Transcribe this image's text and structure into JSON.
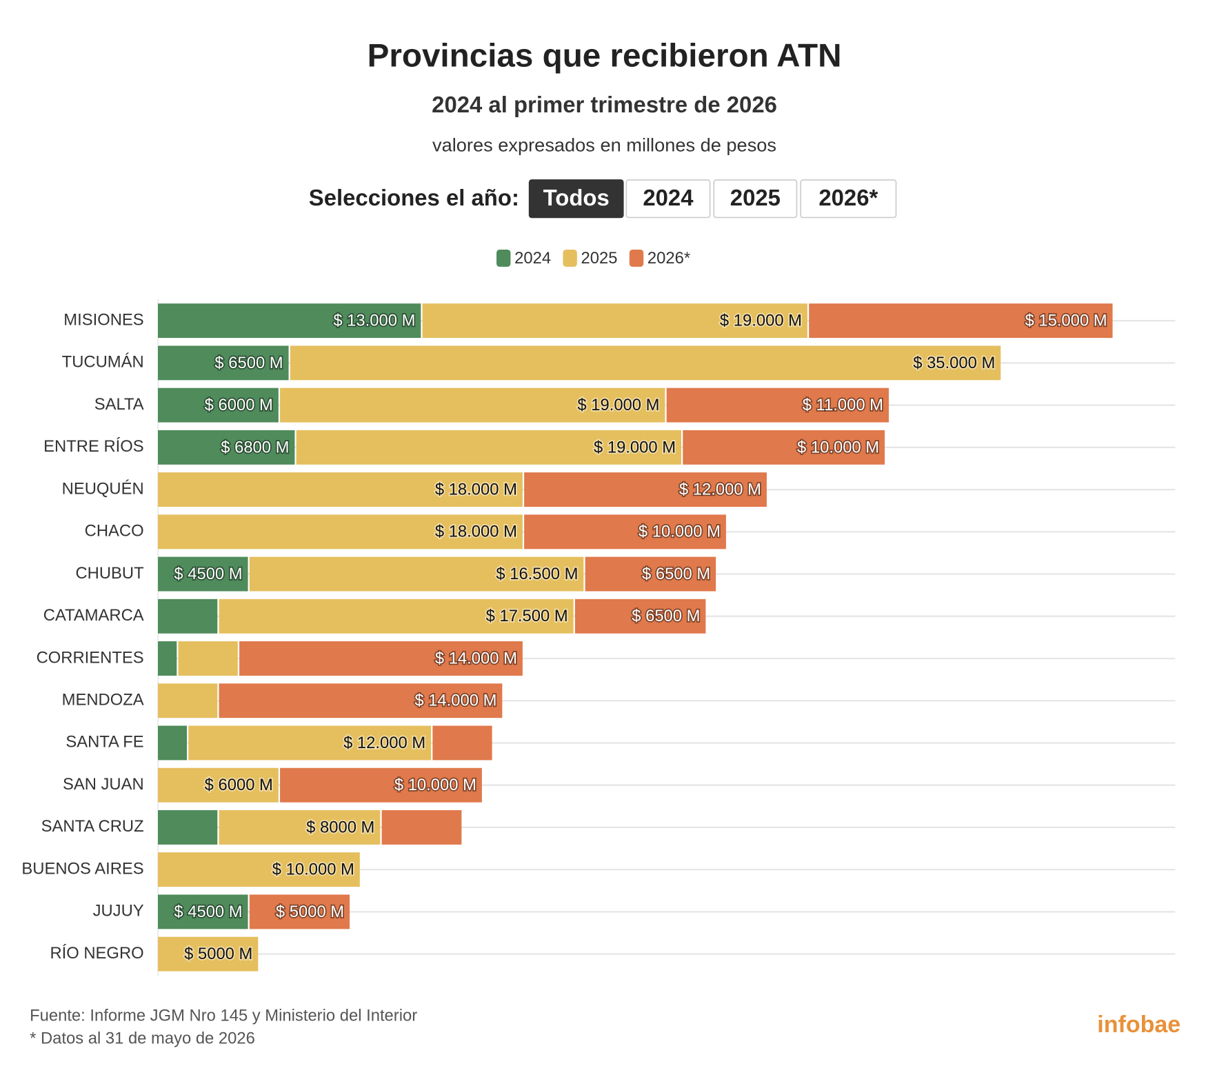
{
  "chart_data": {
    "type": "stacked_bar_horizontal",
    "title": "Provincias que recibieron ATN",
    "subtitle": "2024 al primer trimestre de 2026",
    "note": "valores expresados en millones de pesos",
    "categories": [
      "MISIONES",
      "TUCUMÁN",
      "SALTA",
      "ENTRE RÍOS",
      "NEUQUÉN",
      "CHACO",
      "CHUBUT",
      "CATAMARCA",
      "CORRIENTES",
      "MENDOZA",
      "SANTA FE",
      "SAN JUAN",
      "SANTA CRUZ",
      "BUENOS AIRES",
      "JUJUY",
      "RÍO NEGRO"
    ],
    "series": [
      {
        "name": "2024",
        "color": "#4f8b5b",
        "values": [
          13000,
          6500,
          6000,
          6800,
          null,
          null,
          4500,
          3000,
          1000,
          null,
          1500,
          null,
          3000,
          null,
          4500,
          null
        ],
        "value_labels": [
          "$ 13.000 M",
          "$ 6500 M",
          "$ 6000 M",
          "$ 6800 M",
          null,
          null,
          "$ 4500 M",
          null,
          null,
          null,
          null,
          null,
          null,
          null,
          "$ 4500 M",
          null
        ]
      },
      {
        "name": "2025",
        "color": "#e5bf5e",
        "values": [
          19000,
          35000,
          19000,
          19000,
          18000,
          18000,
          16500,
          17500,
          3000,
          3000,
          12000,
          6000,
          8000,
          10000,
          null,
          5000
        ],
        "value_labels": [
          "$ 19.000 M",
          "$ 35.000 M",
          "$ 19.000 M",
          "$ 19.000 M",
          "$ 18.000 M",
          "$ 18.000 M",
          "$ 16.500 M",
          "$ 17.500 M",
          null,
          null,
          "$ 12.000 M",
          "$ 6000 M",
          "$ 8000 M",
          "$ 10.000 M",
          null,
          "$ 5000 M"
        ]
      },
      {
        "name": "2026*",
        "color": "#e0794b",
        "values": [
          15000,
          null,
          11000,
          10000,
          12000,
          10000,
          6500,
          6500,
          14000,
          14000,
          3000,
          10000,
          4000,
          null,
          5000,
          null
        ],
        "value_labels": [
          "$ 15.000 M",
          null,
          "$ 11.000 M",
          "$ 10.000 M",
          "$ 12.000 M",
          "$ 10.000 M",
          "$ 6500 M",
          "$ 6500 M",
          "$ 14.000 M",
          "$ 14.000 M",
          null,
          "$ 10.000 M",
          null,
          null,
          "$ 5000 M",
          null
        ]
      }
    ],
    "xlim": [
      0,
      50000
    ],
    "grid": true,
    "legend": "top"
  },
  "year_selector": {
    "label": "Selecciones el año:",
    "options": [
      "Todos",
      "2024",
      "2025",
      "2026*"
    ],
    "selected": 0
  },
  "source": "Fuente: Informe JGM Nro 145 y Ministerio del Interior",
  "footnote": "* Datos al 31 de mayo de 2026",
  "logo": "infobae"
}
